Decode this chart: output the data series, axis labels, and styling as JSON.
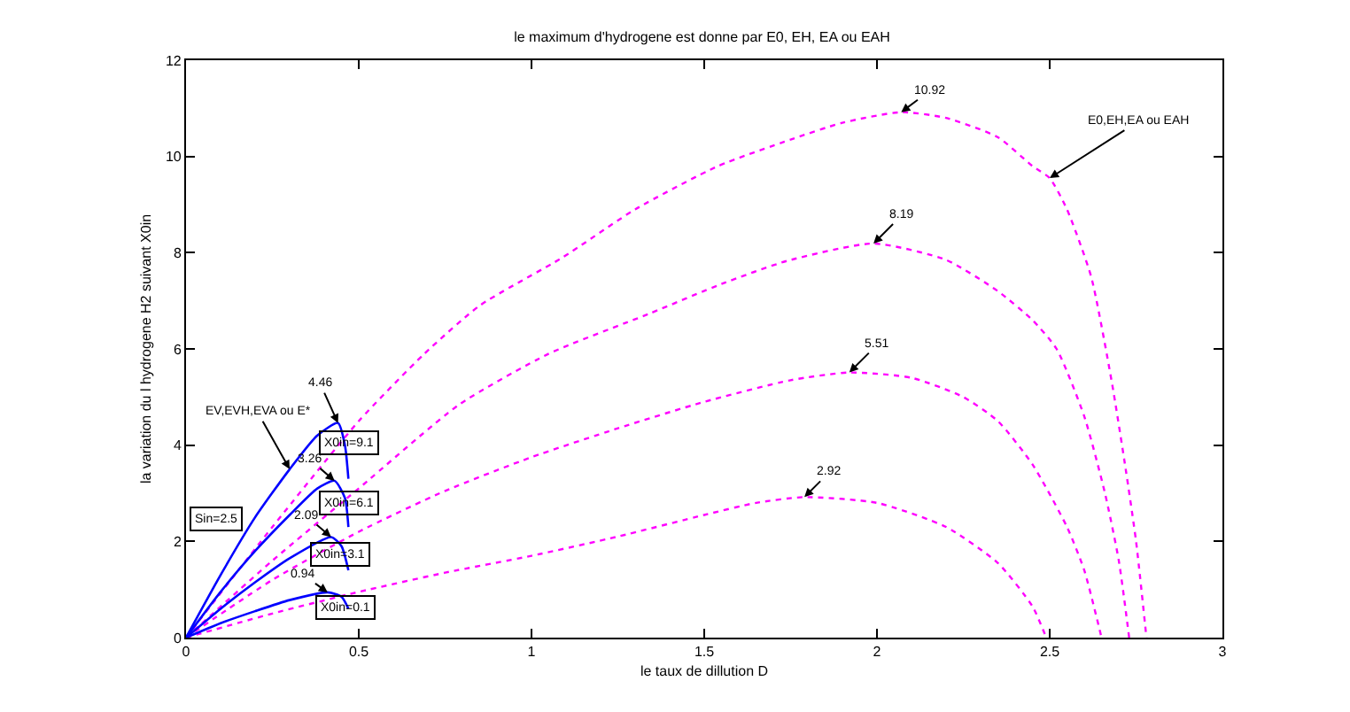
{
  "chart_data": {
    "type": "line",
    "title": "le maximum d'hydrogene est donne par E0, EH, EA ou EAH",
    "xlabel": "le taux de dillution D",
    "ylabel": "la variation du l hydrogene H2 suivant X0in",
    "xlim": [
      0,
      3
    ],
    "xticks": [
      0,
      0.5,
      1,
      1.5,
      2,
      2.5,
      3
    ],
    "ylim": [
      0,
      12
    ],
    "yticks": [
      0,
      2,
      4,
      6,
      8,
      10,
      12
    ],
    "grid": false,
    "marker": "none",
    "series": [
      {
        "color": "#ff00ff",
        "line_style": "dotted",
        "x": [
          0,
          0.25,
          0.5,
          0.69,
          0.85,
          1.09,
          1.3,
          1.54,
          1.75,
          1.9,
          2.07,
          2.2,
          2.35,
          2.45,
          2.5,
          2.55,
          2.62,
          2.68,
          2.72,
          2.75,
          2.78
        ],
        "values": [
          0,
          2.3,
          4.5,
          5.9,
          6.9,
          7.9,
          8.9,
          9.8,
          10.35,
          10.7,
          10.92,
          10.8,
          10.4,
          9.8,
          9.55,
          8.9,
          7.5,
          5.3,
          3.5,
          2,
          0
        ]
      },
      {
        "color": "#ff00ff",
        "line_style": "dotted",
        "x": [
          0,
          0.25,
          0.5,
          0.79,
          1.05,
          1.34,
          1.55,
          1.74,
          1.99,
          2.2,
          2.35,
          2.45,
          2.52,
          2.6,
          2.66,
          2.7,
          2.73
        ],
        "values": [
          0,
          1.6,
          3.1,
          4.84,
          5.9,
          6.73,
          7.35,
          7.83,
          8.19,
          7.85,
          7.2,
          6.6,
          6,
          4.6,
          3,
          1.6,
          0
        ]
      },
      {
        "color": "#ff00ff",
        "line_style": "dotted",
        "x": [
          0,
          0.25,
          0.5,
          0.75,
          1,
          1.25,
          1.5,
          1.75,
          1.92,
          2.1,
          2.25,
          2.35,
          2.45,
          2.55,
          2.6,
          2.65
        ],
        "values": [
          0,
          1.2,
          2.2,
          3.05,
          3.75,
          4.35,
          4.9,
          5.35,
          5.51,
          5.4,
          5,
          4.5,
          3.6,
          2.3,
          1.4,
          0
        ]
      },
      {
        "color": "#ff00ff",
        "line_style": "dotted",
        "x": [
          0,
          0.25,
          0.5,
          0.75,
          1,
          1.25,
          1.5,
          1.65,
          1.79,
          2,
          2.2,
          2.35,
          2.45,
          2.49
        ],
        "values": [
          0,
          0.5,
          0.95,
          1.35,
          1.7,
          2.1,
          2.55,
          2.8,
          2.92,
          2.8,
          2.3,
          1.55,
          0.65,
          0
        ]
      },
      {
        "color": "#0000ff",
        "line_style": "solid",
        "x": [
          0,
          0.1,
          0.2,
          0.3,
          0.38,
          0.44,
          0.46,
          0.47
        ],
        "values": [
          0,
          1.3,
          2.5,
          3.5,
          4.2,
          4.46,
          4,
          3.3
        ]
      },
      {
        "color": "#0000ff",
        "line_style": "solid",
        "x": [
          0,
          0.1,
          0.2,
          0.3,
          0.38,
          0.43,
          0.46,
          0.47
        ],
        "values": [
          0,
          0.95,
          1.8,
          2.55,
          3.1,
          3.26,
          2.9,
          2.3
        ]
      },
      {
        "color": "#0000ff",
        "line_style": "solid",
        "x": [
          0,
          0.1,
          0.2,
          0.3,
          0.42,
          0.45,
          0.47
        ],
        "values": [
          0,
          0.6,
          1.15,
          1.65,
          2.09,
          1.9,
          1.4
        ]
      },
      {
        "color": "#0000ff",
        "line_style": "solid",
        "x": [
          0,
          0.1,
          0.2,
          0.3,
          0.41,
          0.45,
          0.47
        ],
        "values": [
          0,
          0.3,
          0.55,
          0.78,
          0.94,
          0.85,
          0.6
        ]
      }
    ],
    "annotations": [
      {
        "text": "10.92",
        "x": 2.07,
        "y": 10.92
      },
      {
        "text": "8.19",
        "x": 1.99,
        "y": 8.19
      },
      {
        "text": "5.51",
        "x": 1.92,
        "y": 5.51
      },
      {
        "text": "2.92",
        "x": 1.79,
        "y": 2.92
      },
      {
        "text": "4.46",
        "x": 0.44,
        "y": 4.46
      },
      {
        "text": "3.26",
        "x": 0.43,
        "y": 3.26
      },
      {
        "text": "2.09",
        "x": 0.42,
        "y": 2.09
      },
      {
        "text": "0.94",
        "x": 0.41,
        "y": 0.94
      },
      {
        "text": "E0,EH,EA ou EAH",
        "x": 2.5,
        "y": 9.55
      },
      {
        "text": "EV,EVH,EVA ou E*",
        "x": 0.3,
        "y": 3.5
      },
      "Sin=2.5",
      "X0in=9.1",
      "X0in=6.1",
      "X0in=3.1",
      "X0in=0.1"
    ]
  }
}
